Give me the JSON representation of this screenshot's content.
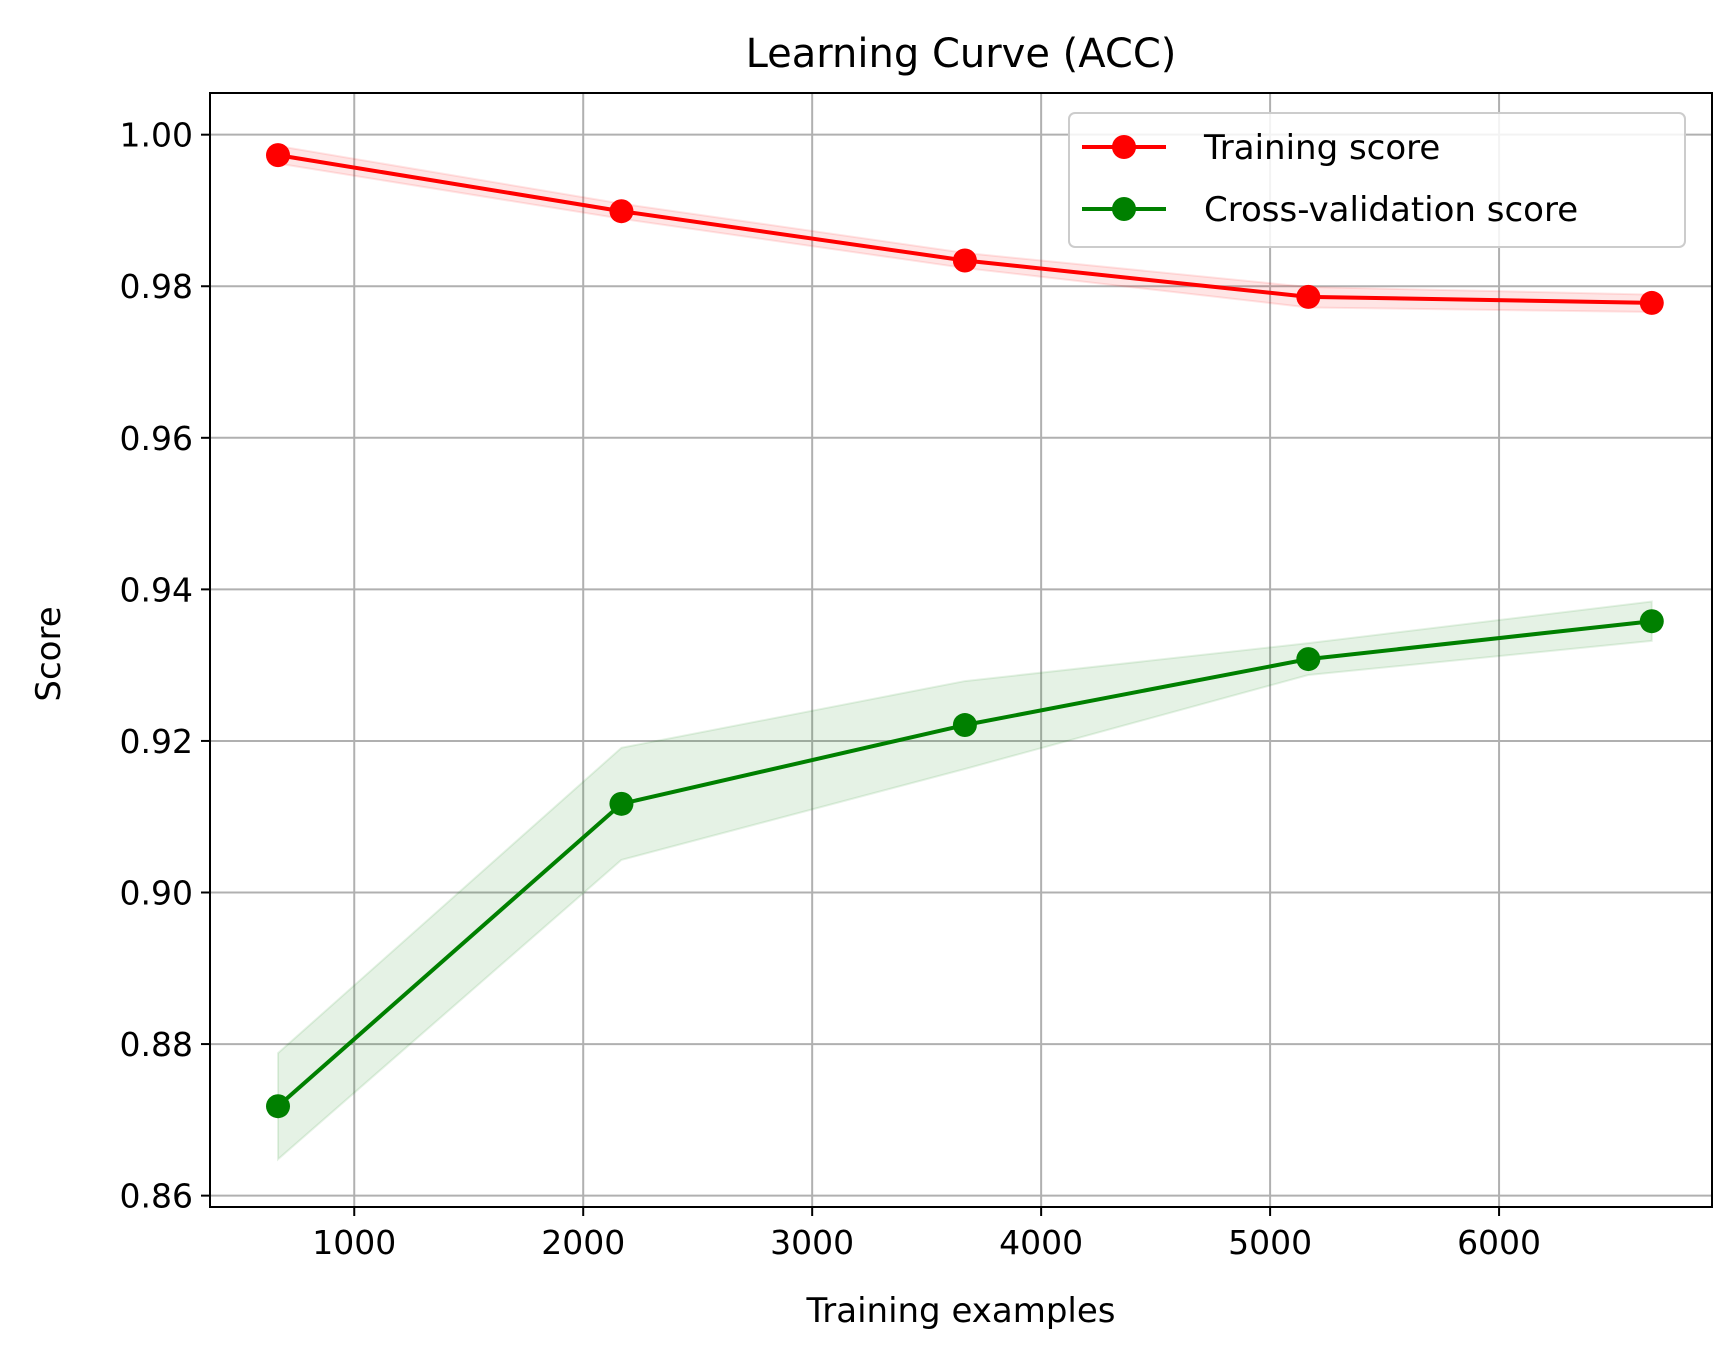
{
  "chart_data": {
    "type": "line",
    "title": "Learning Curve (ACC)",
    "xlabel": "Training examples",
    "ylabel": "Score",
    "xlim": [
      370,
      6930
    ],
    "ylim": [
      0.8585,
      1.0055
    ],
    "xticks": [
      1000,
      2000,
      3000,
      4000,
      5000,
      6000
    ],
    "xtick_labels": [
      "1000",
      "2000",
      "3000",
      "4000",
      "5000",
      "6000"
    ],
    "yticks": [
      0.86,
      0.88,
      0.9,
      0.92,
      0.94,
      0.96,
      0.98,
      1.0
    ],
    "ytick_labels": [
      "0.86",
      "0.88",
      "0.90",
      "0.92",
      "0.94",
      "0.96",
      "0.98",
      "1.00"
    ],
    "grid": true,
    "legend_position": "top-right",
    "x": [
      667,
      2167,
      3667,
      5167,
      6667
    ],
    "series": [
      {
        "name": "Training score",
        "color": "#ff0000",
        "band_color": "#ff0000",
        "values": [
          0.9973,
          0.9899,
          0.9834,
          0.9786,
          0.9778
        ],
        "band_lower": [
          0.9962,
          0.9889,
          0.9824,
          0.9772,
          0.9766
        ],
        "band_upper": [
          0.9985,
          0.9909,
          0.9844,
          0.9799,
          0.9789
        ]
      },
      {
        "name": "Cross-validation score",
        "color": "#008000",
        "band_color": "#008000",
        "values": [
          0.8718,
          0.9117,
          0.9221,
          0.9308,
          0.9358
        ],
        "band_lower": [
          0.8648,
          0.9043,
          0.9163,
          0.9287,
          0.9332
        ],
        "band_upper": [
          0.8788,
          0.9191,
          0.9279,
          0.9329,
          0.9384
        ]
      }
    ]
  }
}
